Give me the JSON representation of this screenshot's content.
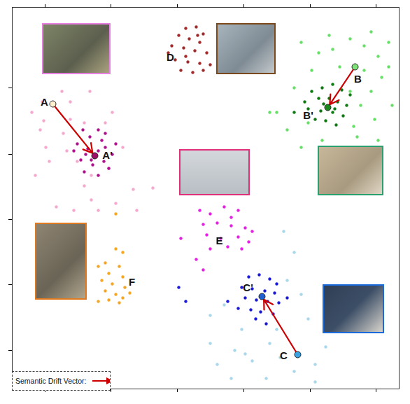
{
  "chart_data": {
    "type": "scatter",
    "xlim": [
      17,
      570
    ],
    "ylim": [
      22,
      567
    ],
    "xticks": [
      64,
      158,
      253,
      348,
      443,
      537
    ],
    "yticks": [
      77,
      171,
      264,
      357,
      452
    ],
    "tick_labels": false,
    "grid": false,
    "legend": "bottom-left",
    "series": [
      {
        "color": "#f7a8cf",
        "x": [
          57,
          62,
          45,
          88,
          100,
          128,
          100,
          120,
          90,
          65,
          70,
          50,
          95,
          130,
          120,
          155,
          165,
          105,
          80,
          175,
          190,
          150,
          160,
          60,
          130,
          140,
          110,
          218,
          195
        ],
        "values": [
          392,
          405,
          417,
          447,
          432,
          447,
          407,
          402,
          387,
          367,
          347,
          327,
          362,
          327,
          312,
          337,
          287,
          277,
          282,
          367,
          307,
          402,
          417,
          432,
          292,
          277,
          347,
          309,
          277
        ]
      },
      {
        "color": "#b0108f",
        "x": [
          118,
          140,
          128,
          145,
          110,
          150,
          125,
          140,
          122,
          160,
          115,
          148,
          132,
          155,
          120,
          140,
          165,
          105,
          130,
          150
        ],
        "values": [
          392,
          392,
          382,
          377,
          372,
          367,
          365,
          362,
          357,
          357,
          349,
          347,
          342,
          337,
          332,
          327,
          372,
          362,
          349,
          387
        ]
      },
      {
        "color": "#66e066",
        "x": [
          430,
          455,
          470,
          500,
          520,
          540,
          555,
          545,
          530,
          560,
          535,
          510,
          540,
          490,
          460,
          430,
          410,
          395,
          385,
          420,
          445,
          485,
          520,
          500,
          555,
          530,
          475,
          515,
          505,
          440
        ],
        "values": [
          517,
          502,
          527,
          522,
          512,
          497,
          482,
          467,
          447,
          427,
          407,
          382,
          377,
          367,
          377,
          367,
          392,
          417,
          417,
          452,
          477,
          482,
          477,
          447,
          517,
          532,
          507,
          427,
          397,
          402
        ]
      },
      {
        "color": "#0f7a12",
        "x": [
          445,
          460,
          475,
          488,
          455,
          470,
          482,
          495,
          440,
          458,
          475,
          490,
          450,
          465,
          480,
          420,
          500,
          462,
          478,
          435
        ],
        "values": [
          447,
          452,
          457,
          449,
          437,
          437,
          432,
          427,
          422,
          419,
          417,
          412,
          407,
          405,
          399,
          417,
          442,
          429,
          422,
          432
        ]
      },
      {
        "color": "#a9d8ec",
        "x": [
          320,
          300,
          345,
          335,
          310,
          360,
          385,
          400,
          420,
          450,
          465,
          440,
          430,
          410,
          405,
          420,
          330,
          380,
          450,
          470,
          395,
          300,
          350
        ],
        "values": [
          142,
          127,
          107,
          77,
          57,
          62,
          87,
          67,
          47,
          57,
          82,
          122,
          157,
          177,
          247,
          217,
          37,
          37,
          32,
          107,
          107,
          87,
          72
        ]
      },
      {
        "color": "#1a1ad6",
        "x": [
          355,
          370,
          385,
          395,
          345,
          360,
          378,
          392,
          350,
          366,
          382,
          398,
          340,
          358,
          372,
          390,
          365,
          380,
          325,
          410,
          255,
          265
        ],
        "values": [
          182,
          185,
          179,
          172,
          167,
          165,
          162,
          159,
          152,
          149,
          147,
          145,
          137,
          135,
          132,
          129,
          122,
          115,
          147,
          152,
          167,
          147
        ]
      },
      {
        "color": "#a32a2a",
        "x": [
          265,
          280,
          290,
          255,
          270,
          285,
          245,
          262,
          278,
          295,
          250,
          268,
          285,
          300,
          258,
          275,
          290,
          265,
          282,
          240
        ],
        "values": [
          537,
          539,
          529,
          527,
          522,
          517,
          512,
          509,
          505,
          502,
          492,
          489,
          487,
          485,
          477,
          474,
          477,
          497,
          527,
          502
        ]
      },
      {
        "color": "#e620e6",
        "x": [
          285,
          300,
          320,
          340,
          290,
          310,
          330,
          350,
          295,
          315,
          340,
          355,
          300,
          325,
          345,
          258,
          280,
          290,
          360,
          330
        ],
        "values": [
          277,
          272,
          282,
          277,
          257,
          259,
          255,
          252,
          242,
          237,
          239,
          232,
          222,
          225,
          222,
          237,
          207,
          192,
          247,
          267
        ]
      },
      {
        "color": "#f5a623",
        "x": [
          165,
          175,
          150,
          170,
          155,
          175,
          145,
          160,
          178,
          150,
          165,
          175,
          155,
          170,
          140,
          165,
          140,
          185
        ],
        "values": [
          222,
          217,
          202,
          197,
          187,
          182,
          177,
          172,
          167,
          162,
          157,
          152,
          149,
          145,
          197,
          272,
          147,
          159
        ]
      }
    ],
    "points": [
      {
        "label": "A",
        "x": 75,
        "y": 429,
        "color": "#fff1d2"
      },
      {
        "label": "A'",
        "x": 135,
        "y": 355,
        "color": "#9c0f66"
      },
      {
        "label": "B",
        "x": 507,
        "y": 482,
        "color": "#80e07a"
      },
      {
        "label": "B'",
        "x": 468,
        "y": 424,
        "color": "#1a8a1a"
      },
      {
        "label": "C",
        "x": 425,
        "y": 71,
        "color": "#3aa0e0"
      },
      {
        "label": "C'",
        "x": 374,
        "y": 154,
        "color": "#1f5fd0"
      }
    ],
    "arrows": {
      "name": "Semantic Drift Vector:",
      "color": "#cc0000",
      "pairs": [
        [
          "A",
          "A'"
        ],
        [
          "B",
          "B'"
        ],
        [
          "C",
          "C'"
        ]
      ]
    },
    "annotations": [
      {
        "text": "D",
        "x": 243,
        "y": 495
      },
      {
        "text": "E",
        "x": 313,
        "y": 233
      },
      {
        "text": "F",
        "x": 188,
        "y": 174
      }
    ]
  }
}
